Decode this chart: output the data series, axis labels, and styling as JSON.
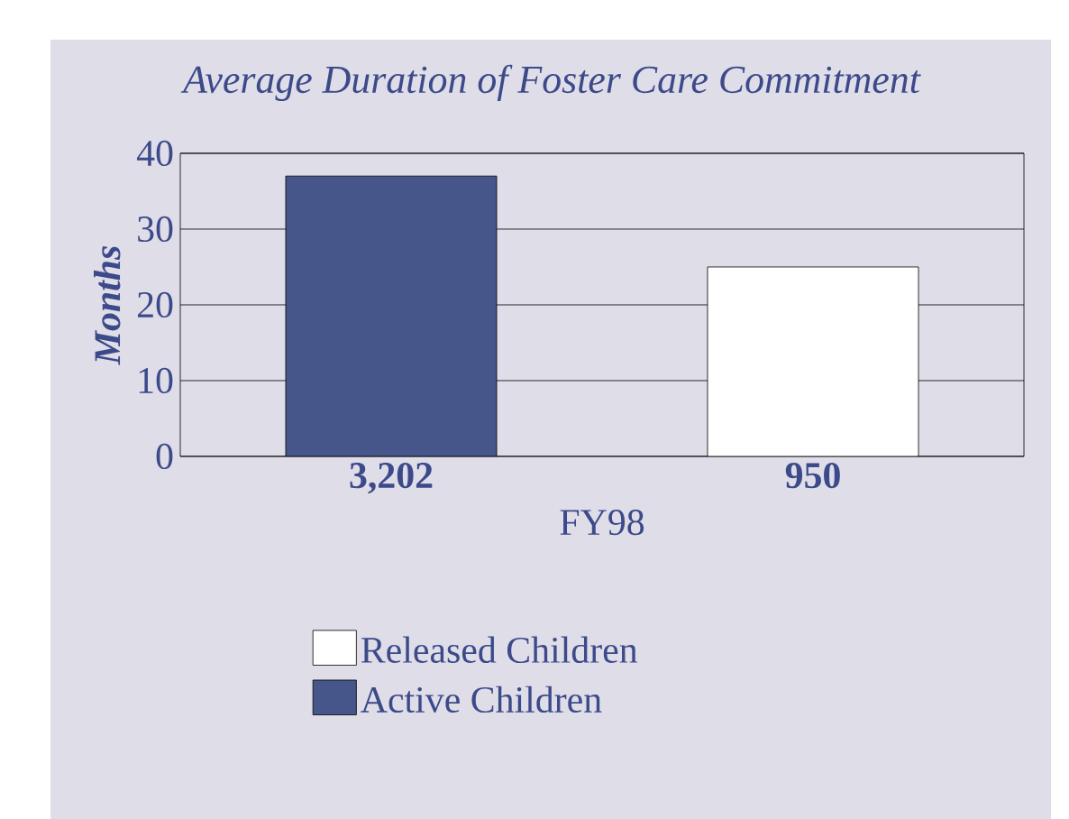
{
  "chart_data": {
    "type": "bar",
    "title": "Average Duration of Foster Care Commitment",
    "ylabel": "Months",
    "xlabel": "FY98",
    "categories": [
      "3,202",
      "950"
    ],
    "series": [
      {
        "name": "Released Children",
        "color": "#ffffff",
        "values": [
          null,
          25
        ]
      },
      {
        "name": "Active Children",
        "color": "#46558a",
        "values": [
          37,
          null
        ]
      }
    ],
    "ylim": [
      0,
      40
    ],
    "yticks": [
      0,
      10,
      20,
      30,
      40
    ],
    "grid": "y",
    "legend": "bottom"
  }
}
